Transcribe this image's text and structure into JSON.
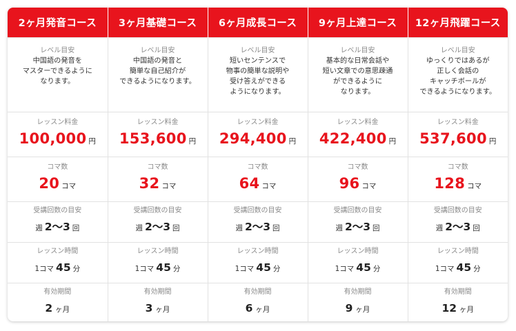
{
  "courses": [
    {
      "name": "2ヶ月発音コース",
      "level_desc": "中国語の発音を\nマスターできるように\nなります。",
      "fee": "100,000",
      "koma": "20",
      "freq_a": "2",
      "freq_b": "3",
      "duration": "45",
      "valid": "2"
    },
    {
      "name": "3ヶ月基礎コース",
      "level_desc": "中国語の発音と\n簡単な自己紹介が\nできるようになります。",
      "fee": "153,600",
      "koma": "32",
      "freq_a": "2",
      "freq_b": "3",
      "duration": "45",
      "valid": "3"
    },
    {
      "name": "6ヶ月成長コース",
      "level_desc": "短いセンテンスで\n物事の簡単な説明や\n受け答えができる\nようになります。",
      "fee": "294,400",
      "koma": "64",
      "freq_a": "2",
      "freq_b": "3",
      "duration": "45",
      "valid": "6"
    },
    {
      "name": "9ヶ月上達コース",
      "level_desc": "基本的な日常会話や\n短い文章での意思疎通\nができるように\nなります。",
      "fee": "422,400",
      "koma": "96",
      "freq_a": "2",
      "freq_b": "3",
      "duration": "45",
      "valid": "9"
    },
    {
      "name": "12ヶ月飛躍コース",
      "level_desc": "ゆっくりではあるが\n正しく会話の\nキャッチボールが\nできるようになります。",
      "fee": "537,600",
      "koma": "128",
      "freq_a": "2",
      "freq_b": "3",
      "duration": "45",
      "valid": "12"
    }
  ],
  "labels": {
    "level": "レベル目安",
    "fee": "レッスン料金",
    "koma": "コマ数",
    "freq": "受講回数の目安",
    "time": "レッスン時間",
    "valid": "有効期間"
  },
  "units": {
    "yen": "円",
    "koma": "コマ",
    "week": "週",
    "tilde": "〜",
    "times": "回",
    "one_koma": "1コマ",
    "minutes": "分",
    "months": "ヶ月"
  },
  "colors": {
    "accent": "#e8141d",
    "label": "#8a8a8a",
    "text": "#333333",
    "border": "#e2e2e2"
  }
}
